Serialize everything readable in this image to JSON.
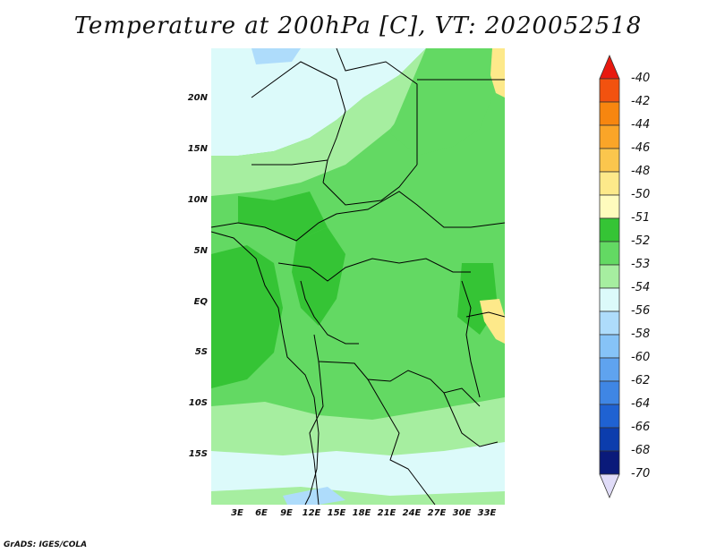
{
  "title": "Temperature at 200hPa [C], VT: 2020052518",
  "credit": "GrADS: IGES/COLA",
  "lat_labels": [
    "20N",
    "15N",
    "10N",
    "5N",
    "EQ",
    "5S",
    "10S",
    "15S"
  ],
  "lon_labels": [
    "3E",
    "6E",
    "9E",
    "12E",
    "15E",
    "18E",
    "21E",
    "24E",
    "27E",
    "30E",
    "33E"
  ],
  "colorbar": {
    "levels": [
      "-40",
      "-42",
      "-44",
      "-46",
      "-48",
      "-50",
      "-51",
      "-52",
      "-53",
      "-54",
      "-56",
      "-58",
      "-60",
      "-62",
      "-64",
      "-66",
      "-68",
      "-70"
    ],
    "colors": [
      "#e8190f",
      "#f2520f",
      "#f7860f",
      "#faa528",
      "#fbc64d",
      "#fde98a",
      "#fffbbd",
      "#35c435",
      "#63d963",
      "#a6eea0",
      "#dcfafa",
      "#aedcfb",
      "#86c3f7",
      "#5fa3ef",
      "#3f86e4",
      "#1f62d2",
      "#0c3dad",
      "#0a1a7a",
      "#e0dcf8"
    ]
  },
  "map": {
    "fills": {
      "dark_green": "#35c435",
      "mid_green": "#63d963",
      "light_green": "#a6eea0",
      "pale_cyan": "#dcfafa",
      "light_blue": "#aedcfb",
      "pale_yellow": "#fde98a"
    }
  }
}
